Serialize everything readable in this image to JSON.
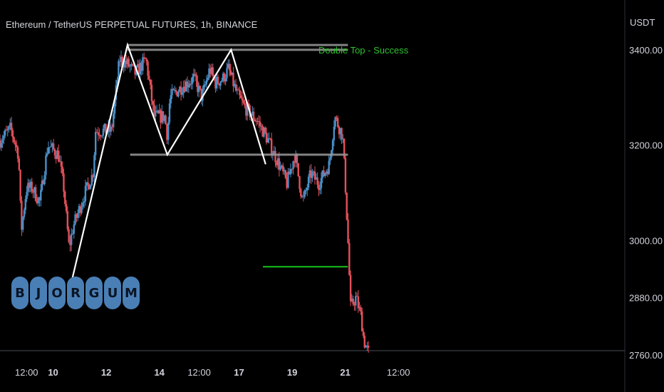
{
  "header": {
    "symbol_line": "Ethereum / TetherUS PERPETUAL FUTURES, 1h, BINANCE"
  },
  "annotation": {
    "text": "Double Top - Success"
  },
  "price_axis": {
    "unit": "USDT"
  },
  "logo": {
    "letters": [
      "B",
      "J",
      "O",
      "R",
      "G",
      "U",
      "M"
    ]
  },
  "colors": {
    "up": "#4a90c8",
    "down": "#e4505a",
    "pattern_line": "#ffffff",
    "level_line": "#9a9a9a",
    "target_line": "#16c21a",
    "annotation": "#2fc12f"
  },
  "chart_data": {
    "type": "candlestick",
    "title": "Ethereum / TetherUS PERPETUAL FUTURES, 1h, BINANCE",
    "ylabel": "USDT",
    "ylim": [
      2760,
      3470
    ],
    "yticks": [
      {
        "value": 3400,
        "label": "3400.00"
      },
      {
        "value": 3200,
        "label": "3200.00"
      },
      {
        "value": 3000,
        "label": "3000.00"
      },
      {
        "value": 2880,
        "label": "2880.00"
      },
      {
        "value": 2760,
        "label": "2760.00"
      }
    ],
    "xlim": [
      0,
      12.5
    ],
    "xticks": [
      {
        "value": 0.5,
        "label": "12:00"
      },
      {
        "value": 1,
        "label": "10"
      },
      {
        "value": 2,
        "label": "12"
      },
      {
        "value": 3,
        "label": "14"
      },
      {
        "value": 3.75,
        "label": "12:00"
      },
      {
        "value": 4.5,
        "label": "17"
      },
      {
        "value": 5.5,
        "label": "19"
      },
      {
        "value": 6.5,
        "label": "21"
      },
      {
        "value": 7.5,
        "label": "12:00"
      }
    ],
    "price_path": [
      [
        0,
        3210
      ],
      [
        0.2,
        3235
      ],
      [
        0.35,
        3180
      ],
      [
        0.4,
        3020
      ],
      [
        0.5,
        3110
      ],
      [
        0.6,
        3110
      ],
      [
        0.75,
        3080
      ],
      [
        0.9,
        3200
      ],
      [
        1.1,
        3180
      ],
      [
        1.2,
        3110
      ],
      [
        1.3,
        2985
      ],
      [
        1.38,
        3030
      ],
      [
        1.6,
        3100
      ],
      [
        1.75,
        3140
      ],
      [
        1.8,
        3230
      ],
      [
        2.1,
        3230
      ],
      [
        2.25,
        3380
      ],
      [
        2.4,
        3370
      ],
      [
        2.55,
        3350
      ],
      [
        2.75,
        3380
      ],
      [
        2.9,
        3260
      ],
      [
        3.1,
        3260
      ],
      [
        3.15,
        3220
      ],
      [
        3.2,
        3300
      ],
      [
        3.45,
        3325
      ],
      [
        3.65,
        3340
      ],
      [
        3.8,
        3300
      ],
      [
        3.95,
        3360
      ],
      [
        4.05,
        3330
      ],
      [
        4.2,
        3340
      ],
      [
        4.3,
        3360
      ],
      [
        4.45,
        3310
      ],
      [
        4.6,
        3280
      ],
      [
        4.85,
        3250
      ],
      [
        5.0,
        3220
      ],
      [
        5.25,
        3160
      ],
      [
        5.4,
        3120
      ],
      [
        5.55,
        3180
      ],
      [
        5.7,
        3080
      ],
      [
        5.85,
        3140
      ],
      [
        6.0,
        3120
      ],
      [
        6.2,
        3160
      ],
      [
        6.3,
        3260
      ],
      [
        6.45,
        3220
      ],
      [
        6.5,
        3120
      ],
      [
        6.55,
        3000
      ],
      [
        6.6,
        2860
      ],
      [
        6.7,
        2880
      ],
      [
        6.8,
        2840
      ],
      [
        6.85,
        2790
      ],
      [
        6.95,
        2760
      ]
    ],
    "pattern_zigzag": [
      {
        "x": 1.35,
        "y": 2915
      },
      {
        "x": 2.4,
        "y": 3410
      },
      {
        "x": 3.15,
        "y": 3180
      },
      {
        "x": 4.35,
        "y": 3400
      },
      {
        "x": 5.0,
        "y": 3160
      }
    ],
    "levels": [
      {
        "y": 3410,
        "x_start": 2.4,
        "x_end": 6.55,
        "role": "resistance"
      },
      {
        "y": 3400,
        "x_start": 2.4,
        "x_end": 6.55,
        "role": "resistance"
      },
      {
        "y": 3180,
        "x_start": 2.45,
        "x_end": 6.55,
        "role": "neckline"
      },
      {
        "y": 2945,
        "x_start": 4.95,
        "x_end": 6.55,
        "role": "target"
      }
    ]
  }
}
